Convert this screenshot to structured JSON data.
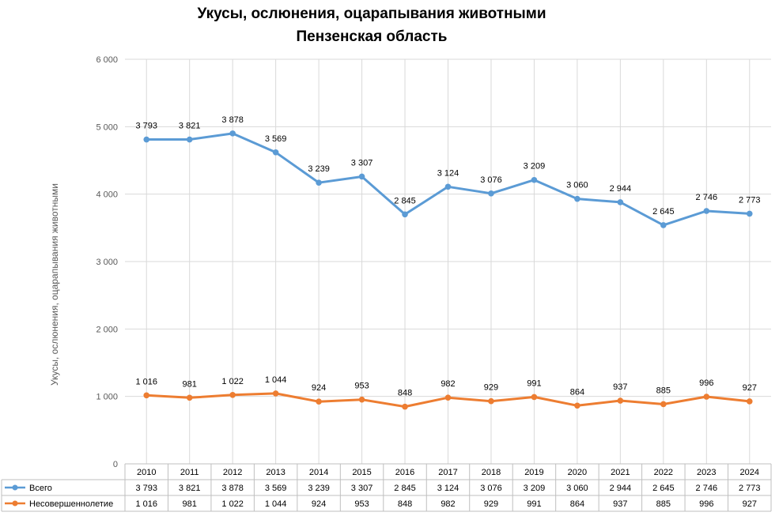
{
  "chart_data": {
    "type": "line",
    "title": "Укусы, ослюнения, оцарапывания животными",
    "subtitle": "Пензенская область",
    "ylabel": "Укусы, ослюнения, оцарапывания животными",
    "xlabel": "",
    "ylim": [
      0,
      6000
    ],
    "yticks": [
      0,
      1000,
      2000,
      3000,
      4000,
      5000,
      6000
    ],
    "ytick_labels": [
      "0",
      "1 000",
      "2 000",
      "3 000",
      "4 000",
      "5 000",
      "6 000"
    ],
    "grid": true,
    "legend_placement": "data-table",
    "categories": [
      "2010",
      "2011",
      "2012",
      "2013",
      "2014",
      "2015",
      "2016",
      "2017",
      "2018",
      "2019",
      "2020",
      "2021",
      "2022",
      "2023",
      "2024"
    ],
    "series": [
      {
        "name": "Всего",
        "color": "#5B9BD5",
        "values": [
          4810,
          4810,
          4900,
          4620,
          4170,
          4260,
          3700,
          4110,
          4010,
          4210,
          3930,
          3880,
          3540,
          3750,
          3710
        ],
        "data_labels": [
          "3 793",
          "3 821",
          "3 878",
          "3 569",
          "3 239",
          "3 307",
          "2 845",
          "3 124",
          "3 076",
          "3 209",
          "3 060",
          "2 944",
          "2 645",
          "2 746",
          "2 773"
        ],
        "table_values": [
          "3 793",
          "3 821",
          "3 878",
          "3 569",
          "3 239",
          "3 307",
          "2 845",
          "3 124",
          "3 076",
          "3 209",
          "3 060",
          "2 944",
          "2 645",
          "2 746",
          "2 773"
        ]
      },
      {
        "name": "Несовершеннолетие",
        "color": "#ED7D31",
        "values": [
          1016,
          981,
          1022,
          1044,
          924,
          953,
          848,
          982,
          929,
          991,
          864,
          937,
          885,
          996,
          927
        ],
        "data_labels": [
          "1 016",
          "981",
          "1 022",
          "1 044",
          "924",
          "953",
          "848",
          "982",
          "929",
          "991",
          "864",
          "937",
          "885",
          "996",
          "927"
        ],
        "table_values": [
          "1 016",
          "981",
          "1 022",
          "1 044",
          "924",
          "953",
          "848",
          "982",
          "929",
          "991",
          "864",
          "937",
          "885",
          "996",
          "927"
        ]
      }
    ]
  }
}
